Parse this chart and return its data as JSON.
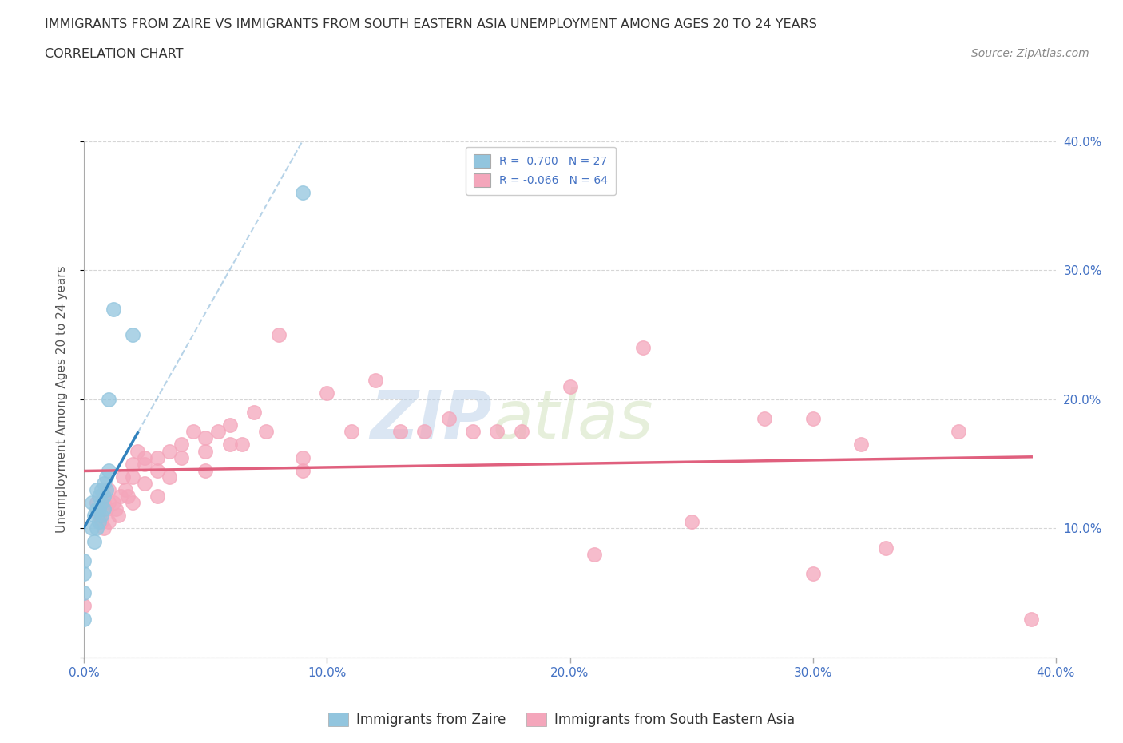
{
  "title_line1": "IMMIGRANTS FROM ZAIRE VS IMMIGRANTS FROM SOUTH EASTERN ASIA UNEMPLOYMENT AMONG AGES 20 TO 24 YEARS",
  "title_line2": "CORRELATION CHART",
  "source_text": "Source: ZipAtlas.com",
  "ylabel": "Unemployment Among Ages 20 to 24 years",
  "watermark_zip": "ZIP",
  "watermark_atlas": "atlas",
  "xlim": [
    0.0,
    0.4
  ],
  "ylim": [
    0.0,
    0.4
  ],
  "xtick_values": [
    0.0,
    0.1,
    0.2,
    0.3,
    0.4
  ],
  "xtick_labels": [
    "0.0%",
    "10.0%",
    "20.0%",
    "30.0%",
    "40.0%"
  ],
  "ytick_values": [
    0.0,
    0.1,
    0.2,
    0.3,
    0.4
  ],
  "zaire_R": 0.7,
  "zaire_N": 27,
  "sea_R": -0.066,
  "sea_N": 64,
  "zaire_color": "#92c5de",
  "sea_color": "#f4a6bb",
  "zaire_line_color": "#3182bd",
  "sea_line_color": "#e0607e",
  "zaire_scatter_x": [
    0.0,
    0.0,
    0.0,
    0.0,
    0.003,
    0.003,
    0.004,
    0.004,
    0.005,
    0.005,
    0.005,
    0.006,
    0.006,
    0.006,
    0.007,
    0.007,
    0.007,
    0.008,
    0.008,
    0.008,
    0.009,
    0.009,
    0.01,
    0.01,
    0.012,
    0.02,
    0.09
  ],
  "zaire_scatter_y": [
    0.075,
    0.065,
    0.05,
    0.03,
    0.12,
    0.1,
    0.11,
    0.09,
    0.13,
    0.115,
    0.1,
    0.125,
    0.115,
    0.105,
    0.13,
    0.12,
    0.11,
    0.135,
    0.125,
    0.115,
    0.14,
    0.13,
    0.145,
    0.2,
    0.27,
    0.25,
    0.36
  ],
  "sea_scatter_x": [
    0.0,
    0.005,
    0.006,
    0.007,
    0.008,
    0.008,
    0.009,
    0.01,
    0.01,
    0.01,
    0.012,
    0.013,
    0.014,
    0.015,
    0.016,
    0.017,
    0.018,
    0.02,
    0.02,
    0.02,
    0.022,
    0.025,
    0.025,
    0.025,
    0.03,
    0.03,
    0.03,
    0.035,
    0.035,
    0.04,
    0.04,
    0.045,
    0.05,
    0.05,
    0.05,
    0.055,
    0.06,
    0.06,
    0.065,
    0.07,
    0.075,
    0.08,
    0.09,
    0.09,
    0.1,
    0.11,
    0.12,
    0.13,
    0.14,
    0.15,
    0.16,
    0.17,
    0.18,
    0.2,
    0.21,
    0.23,
    0.25,
    0.28,
    0.3,
    0.3,
    0.32,
    0.33,
    0.36,
    0.39
  ],
  "sea_scatter_y": [
    0.04,
    0.12,
    0.11,
    0.105,
    0.12,
    0.1,
    0.115,
    0.13,
    0.12,
    0.105,
    0.12,
    0.115,
    0.11,
    0.125,
    0.14,
    0.13,
    0.125,
    0.15,
    0.14,
    0.12,
    0.16,
    0.155,
    0.15,
    0.135,
    0.155,
    0.145,
    0.125,
    0.16,
    0.14,
    0.165,
    0.155,
    0.175,
    0.17,
    0.16,
    0.145,
    0.175,
    0.18,
    0.165,
    0.165,
    0.19,
    0.175,
    0.25,
    0.155,
    0.145,
    0.205,
    0.175,
    0.215,
    0.175,
    0.175,
    0.185,
    0.175,
    0.175,
    0.175,
    0.21,
    0.08,
    0.24,
    0.105,
    0.185,
    0.185,
    0.065,
    0.165,
    0.085,
    0.175,
    0.03
  ],
  "legend_zaire_label": "Immigrants from Zaire",
  "legend_sea_label": "Immigrants from South Eastern Asia",
  "bg_color": "#ffffff",
  "grid_color": "#cccccc",
  "title_color": "#333333",
  "axis_label_color": "#4472c4",
  "legend_text_color": "#4472c4"
}
